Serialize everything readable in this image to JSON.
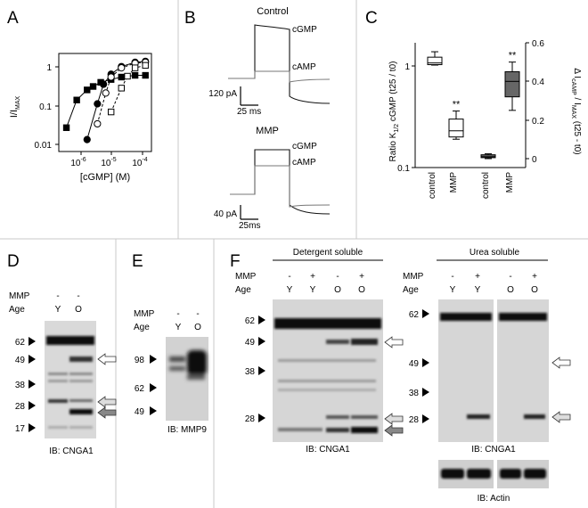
{
  "panels": {
    "A": {
      "label": "A",
      "ylabel": "I/I",
      "ylabel_sub": "MAX",
      "xlabel": "[cGMP] (M)",
      "y_ticks": [
        "1",
        "0.1",
        "0.01"
      ],
      "x_ticks": [
        "10",
        "10",
        "10"
      ],
      "x_exp": [
        "-6",
        "-5",
        "-4"
      ],
      "chart_data": {
        "type": "scatter",
        "x_scale": "log",
        "y_scale": "log",
        "xlim": [
          3e-07,
          0.00015
        ],
        "ylim": [
          0.005,
          1.5
        ],
        "series": [
          {
            "marker": "filled-square",
            "line": "solid",
            "points": [
              [
                5e-07,
                0.02
              ],
              [
                1e-06,
                0.1
              ],
              [
                2e-06,
                0.18
              ],
              [
                3e-06,
                0.22
              ],
              [
                5e-06,
                0.28
              ],
              [
                1e-05,
                0.33
              ],
              [
                2e-05,
                0.38
              ],
              [
                5e-05,
                0.42
              ],
              [
                0.0001,
                0.42
              ]
            ]
          },
          {
            "marker": "filled-circle",
            "line": "solid",
            "points": [
              [
                2e-06,
                0.01
              ],
              [
                4e-06,
                0.08
              ],
              [
                6e-06,
                0.25
              ],
              [
                1e-05,
                0.45
              ],
              [
                2e-05,
                0.7
              ],
              [
                5e-05,
                0.9
              ],
              [
                0.0001,
                0.95
              ]
            ]
          },
          {
            "marker": "open-circle",
            "line": "dashed",
            "points": [
              [
                4e-06,
                0.025
              ],
              [
                7e-06,
                0.15
              ],
              [
                1e-05,
                0.38
              ],
              [
                2e-05,
                0.65
              ],
              [
                5e-05,
                0.85
              ],
              [
                0.0001,
                0.9
              ]
            ]
          },
          {
            "marker": "open-square",
            "line": "dashed",
            "points": [
              [
                1e-05,
                0.05
              ],
              [
                2e-05,
                0.2
              ],
              [
                3e-05,
                0.4
              ],
              [
                5e-05,
                0.65
              ],
              [
                0.0001,
                0.75
              ]
            ]
          }
        ]
      }
    },
    "B": {
      "label": "B",
      "control_title": "Control",
      "mmp_title": "MMP",
      "trace_cgmp": "cGMP",
      "trace_camp": "cAMP",
      "scale1_current": "120 pA",
      "scale1_time": "25 ms",
      "scale2_current": "40 pA",
      "scale2_time": "25ms"
    },
    "C": {
      "label": "C",
      "ylabel_left": "Ratio K",
      "ylabel_left_sub": "1/2",
      "ylabel_left_rest": " cGMP (t25 / t0)",
      "ylabel_right": "Δ I",
      "ylabel_right_sub": "cAMP",
      "ylabel_right_rest": " / I",
      "ylabel_right_sub2": "MAX",
      "ylabel_right_tail": " (t25 - t0)",
      "left_ticks": [
        "1",
        "0.1"
      ],
      "right_ticks": [
        "0.6",
        "0.4",
        "0.2",
        "0"
      ],
      "categories_left": [
        "control",
        "MMP"
      ],
      "categories_right": [
        "control",
        "MMP"
      ],
      "sig": "**",
      "chart_data": {
        "type": "box",
        "left_axis": {
          "scale": "log",
          "ylim": [
            0.1,
            1.6
          ],
          "boxes": [
            {
              "category": "control",
              "whisker_low": 1.02,
              "q1": 1.03,
              "median": 1.07,
              "q3": 1.22,
              "whisker_high": 1.38
            },
            {
              "category": "MMP",
              "whisker_low": 0.19,
              "q1": 0.2,
              "median": 0.23,
              "q3": 0.3,
              "whisker_high": 0.36,
              "sig": "**"
            }
          ]
        },
        "right_axis": {
          "scale": "linear",
          "ylim": [
            0,
            0.6
          ],
          "boxes": [
            {
              "category": "control",
              "whisker_low": 0.0,
              "q1": 0.005,
              "median": 0.01,
              "q3": 0.02,
              "whisker_high": 0.025
            },
            {
              "category": "MMP",
              "whisker_low": 0.25,
              "q1": 0.32,
              "median": 0.4,
              "q3": 0.45,
              "whisker_high": 0.5,
              "sig": "**"
            }
          ]
        }
      }
    },
    "D": {
      "label": "D",
      "row_mmp": "MMP",
      "row_age": "Age",
      "mmp_vals": [
        "-",
        "-"
      ],
      "age_vals": [
        "Y",
        "O"
      ],
      "markers": [
        "62",
        "49",
        "38",
        "28",
        "17"
      ],
      "ib": "IB: CNGA1"
    },
    "E": {
      "label": "E",
      "row_mmp": "MMP",
      "row_age": "Age",
      "mmp_vals": [
        "-",
        "-"
      ],
      "age_vals": [
        "Y",
        "O"
      ],
      "markers": [
        "98",
        "62",
        "49"
      ],
      "ib": "IB: MMP9"
    },
    "F": {
      "label": "F",
      "det_title": "Detergent soluble",
      "urea_title": "Urea soluble",
      "row_mmp": "MMP",
      "row_age": "Age",
      "det_mmp": [
        "-",
        "+",
        "-",
        "+"
      ],
      "det_age": [
        "Y",
        "Y",
        "O",
        "O"
      ],
      "urea_mmp": [
        "-",
        "+",
        "-",
        "+"
      ],
      "urea_age": [
        "Y",
        "Y",
        "O",
        "O"
      ],
      "markers_det": [
        "62",
        "49",
        "38",
        "28"
      ],
      "markers_urea": [
        "62",
        "49",
        "38",
        "28"
      ],
      "ib_det": "IB: CNGA1",
      "ib_urea": "IB: CNGA1",
      "ib_actin": "IB: Actin"
    }
  }
}
